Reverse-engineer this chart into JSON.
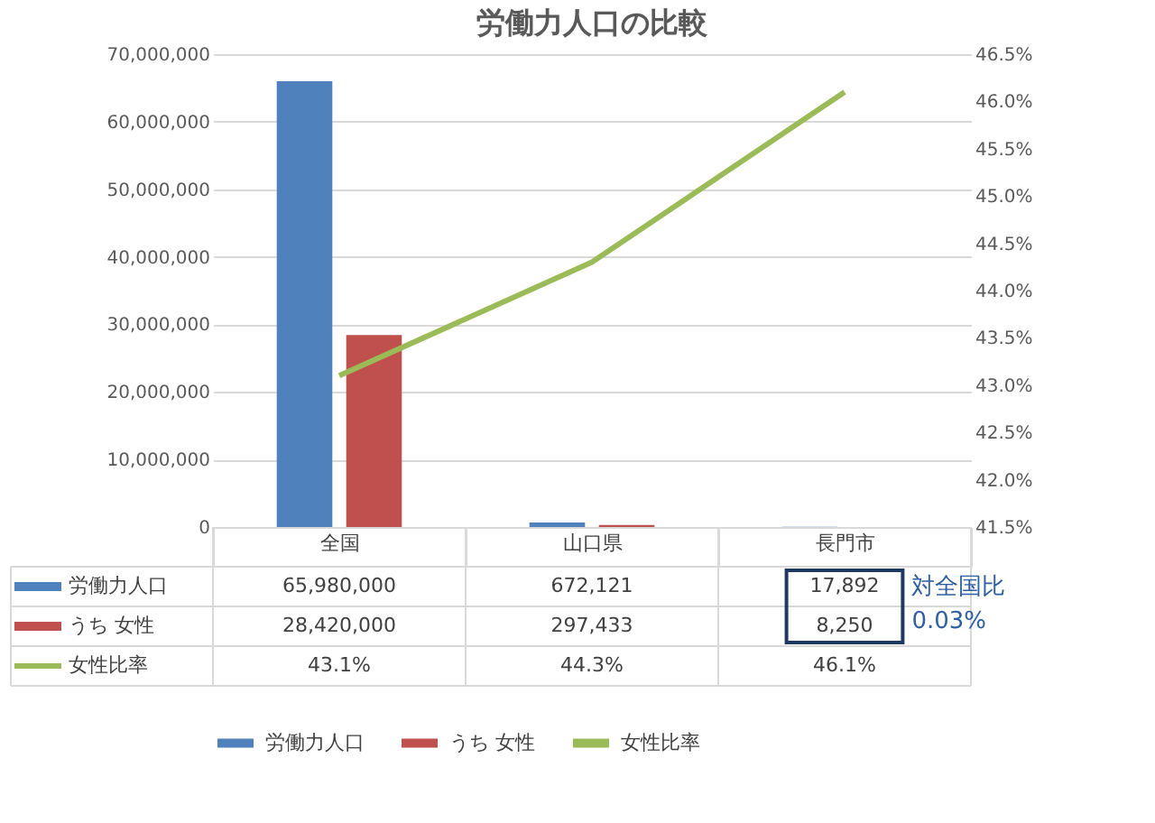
{
  "chart_data": {
    "type": "bar",
    "title": "労働力人口の比較",
    "categories": [
      "全国",
      "山口県",
      "長門市"
    ],
    "series": [
      {
        "name": "労働力人口",
        "color": "#4f81bd",
        "values": [
          65980000,
          672121,
          17892
        ],
        "value_labels": [
          "65,980,000",
          "672,121",
          "17,892"
        ]
      },
      {
        "name": "うち 女性",
        "color": "#c0504d",
        "values": [
          28420000,
          297433,
          8250
        ],
        "value_labels": [
          "28,420,000",
          "297,433",
          "8,250"
        ]
      },
      {
        "name": "女性比率",
        "type": "line",
        "axis": "y2",
        "color": "#9bbb59",
        "values": [
          43.1,
          44.3,
          46.1
        ],
        "value_labels": [
          "43.1%",
          "44.3%",
          "46.1%"
        ]
      }
    ],
    "ylim": [
      0,
      70000000
    ],
    "yticks": [
      0,
      {
        "value": 10000000,
        "label": "10,000,000"
      },
      {
        "value": 20000000,
        "label": "20,000,000"
      },
      {
        "value": 30000000,
        "label": "30,000,000"
      },
      {
        "value": 40000000,
        "label": "40,000,000"
      },
      {
        "value": 50000000,
        "label": "50,000,000"
      },
      {
        "value": 60000000,
        "label": "60,000,000"
      },
      {
        "value": 70000000,
        "label": "70,000,000"
      }
    ],
    "y2lim": [
      41.5,
      46.5
    ],
    "y2ticks": [
      {
        "value": 41.5,
        "label": "41.5%"
      },
      {
        "value": 42,
        "label": "42.0%"
      },
      {
        "value": 42.5,
        "label": "42.5%"
      },
      {
        "value": 43,
        "label": "43.0%"
      },
      {
        "value": 43.5,
        "label": "43.5%"
      },
      {
        "value": 44,
        "label": "44.0%"
      },
      {
        "value": 44.5,
        "label": "44.5%"
      },
      {
        "value": 45,
        "label": "45.0%"
      },
      {
        "value": 45.5,
        "label": "45.5%"
      },
      {
        "value": 46,
        "label": "46.0%"
      },
      {
        "value": 46.5,
        "label": "46.5%"
      }
    ],
    "grid": "y",
    "legend": "bottom",
    "marker": "none",
    "annotations": [
      "対全国比",
      "0.03%"
    ]
  }
}
